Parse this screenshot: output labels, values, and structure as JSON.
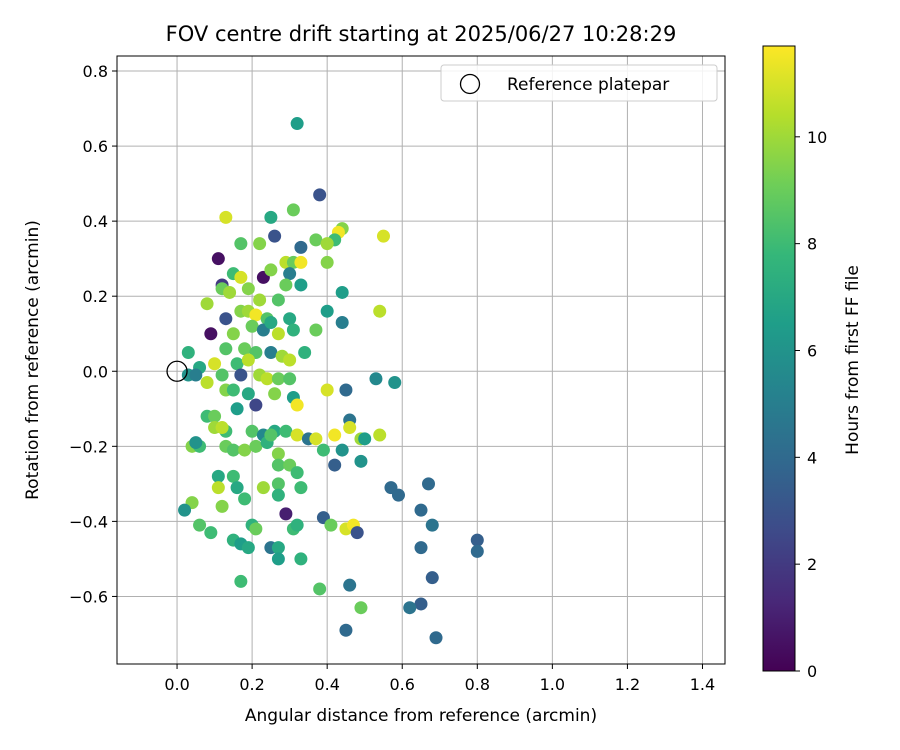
{
  "chart_data": {
    "type": "scatter",
    "title": "FOV centre drift starting at 2025/06/27 10:28:29",
    "xlabel": "Angular distance from reference (arcmin)",
    "ylabel": "Rotation from reference (arcmin)",
    "xlim": [
      -0.16,
      1.46
    ],
    "ylim": [
      -0.78,
      0.84
    ],
    "xticks": [
      0.0,
      0.2,
      0.4,
      0.6,
      0.8,
      1.0,
      1.2,
      1.4
    ],
    "xtick_labels": [
      "0.0",
      "0.2",
      "0.4",
      "0.6",
      "0.8",
      "1.0",
      "1.2",
      "1.4"
    ],
    "yticks": [
      -0.6,
      -0.4,
      -0.2,
      0.0,
      0.2,
      0.4,
      0.6,
      0.8
    ],
    "ytick_labels": [
      "−0.6",
      "−0.4",
      "−0.2",
      "0.0",
      "0.2",
      "0.4",
      "0.6",
      "0.8"
    ],
    "grid": true,
    "legend": {
      "placement": "top-right",
      "entries": [
        "Reference platepar"
      ]
    },
    "reference_point": {
      "x": 0.0,
      "y": 0.0,
      "label": "Reference platepar"
    },
    "colorbar": {
      "label": "Hours from first FF file",
      "colormap": "viridis",
      "range": [
        0,
        11.7
      ],
      "ticks": [
        0,
        2,
        4,
        6,
        8,
        10
      ],
      "tick_labels": [
        "0",
        "2",
        "4",
        "6",
        "8",
        "10"
      ]
    },
    "colormap_stops": [
      "#440154",
      "#482878",
      "#3e4a89",
      "#31688e",
      "#26828e",
      "#1f9e89",
      "#35b779",
      "#6ece58",
      "#b5de2b",
      "#fde725"
    ],
    "points": [
      [
        0.32,
        0.66,
        6.5
      ],
      [
        0.38,
        0.47,
        3.0
      ],
      [
        0.13,
        0.41,
        11.0
      ],
      [
        0.25,
        0.41,
        7.0
      ],
      [
        0.31,
        0.43,
        9.0
      ],
      [
        0.55,
        0.36,
        11.0
      ],
      [
        0.44,
        0.38,
        9.5
      ],
      [
        0.43,
        0.37,
        11.5
      ],
      [
        0.42,
        0.35,
        8.0
      ],
      [
        0.37,
        0.35,
        9.0
      ],
      [
        0.4,
        0.34,
        10.0
      ],
      [
        0.26,
        0.36,
        3.0
      ],
      [
        0.17,
        0.34,
        8.5
      ],
      [
        0.22,
        0.34,
        9.5
      ],
      [
        0.33,
        0.33,
        4.0
      ],
      [
        0.11,
        0.3,
        0.5
      ],
      [
        0.23,
        0.25,
        0.5
      ],
      [
        0.25,
        0.27,
        9.5
      ],
      [
        0.29,
        0.29,
        10.5
      ],
      [
        0.31,
        0.29,
        9.0
      ],
      [
        0.33,
        0.29,
        11.5
      ],
      [
        0.4,
        0.29,
        9.5
      ],
      [
        0.15,
        0.26,
        8.0
      ],
      [
        0.17,
        0.25,
        11.0
      ],
      [
        0.3,
        0.26,
        5.0
      ],
      [
        0.33,
        0.23,
        6.5
      ],
      [
        0.12,
        0.23,
        2.0
      ],
      [
        0.12,
        0.22,
        9.0
      ],
      [
        0.14,
        0.21,
        10.0
      ],
      [
        0.19,
        0.22,
        9.5
      ],
      [
        0.29,
        0.23,
        9.0
      ],
      [
        0.44,
        0.21,
        6.5
      ],
      [
        0.08,
        0.18,
        10.0
      ],
      [
        0.22,
        0.19,
        10.0
      ],
      [
        0.27,
        0.19,
        8.5
      ],
      [
        0.4,
        0.16,
        6.5
      ],
      [
        0.54,
        0.16,
        10.5
      ],
      [
        0.44,
        0.13,
        5.0
      ],
      [
        0.13,
        0.14,
        3.0
      ],
      [
        0.17,
        0.16,
        9.5
      ],
      [
        0.19,
        0.16,
        10.0
      ],
      [
        0.21,
        0.15,
        11.5
      ],
      [
        0.24,
        0.14,
        8.5
      ],
      [
        0.3,
        0.14,
        7.0
      ],
      [
        0.09,
        0.1,
        0.5
      ],
      [
        0.15,
        0.1,
        9.5
      ],
      [
        0.2,
        0.12,
        9.0
      ],
      [
        0.23,
        0.11,
        5.0
      ],
      [
        0.25,
        0.13,
        7.0
      ],
      [
        0.27,
        0.1,
        10.5
      ],
      [
        0.31,
        0.11,
        7.5
      ],
      [
        0.37,
        0.11,
        9.0
      ],
      [
        0.03,
        0.05,
        7.5
      ],
      [
        0.13,
        0.06,
        8.5
      ],
      [
        0.18,
        0.06,
        9.0
      ],
      [
        0.21,
        0.05,
        8.5
      ],
      [
        0.25,
        0.05,
        5.0
      ],
      [
        0.28,
        0.04,
        10.0
      ],
      [
        0.3,
        0.03,
        10.5
      ],
      [
        0.34,
        0.05,
        7.5
      ],
      [
        0.06,
        0.01,
        7.0
      ],
      [
        0.1,
        0.02,
        11.0
      ],
      [
        0.16,
        0.02,
        8.0
      ],
      [
        0.19,
        0.03,
        10.5
      ],
      [
        0.03,
        -0.01,
        6.0
      ],
      [
        0.05,
        -0.01,
        5.0
      ],
      [
        0.08,
        -0.03,
        10.5
      ],
      [
        0.12,
        -0.01,
        8.5
      ],
      [
        0.17,
        -0.01,
        3.0
      ],
      [
        0.22,
        -0.01,
        10.0
      ],
      [
        0.24,
        -0.02,
        10.5
      ],
      [
        0.27,
        -0.02,
        9.0
      ],
      [
        0.3,
        -0.02,
        8.5
      ],
      [
        0.26,
        -0.06,
        9.5
      ],
      [
        0.31,
        -0.07,
        6.5
      ],
      [
        0.4,
        -0.05,
        11.0
      ],
      [
        0.45,
        -0.05,
        4.0
      ],
      [
        0.53,
        -0.02,
        5.5
      ],
      [
        0.58,
        -0.03,
        6.0
      ],
      [
        0.13,
        -0.05,
        9.5
      ],
      [
        0.15,
        -0.05,
        8.0
      ],
      [
        0.19,
        -0.06,
        7.0
      ],
      [
        0.21,
        -0.09,
        2.5
      ],
      [
        0.32,
        -0.09,
        11.5
      ],
      [
        0.08,
        -0.12,
        8.0
      ],
      [
        0.1,
        -0.12,
        9.0
      ],
      [
        0.16,
        -0.1,
        6.5
      ],
      [
        0.1,
        -0.15,
        10.0
      ],
      [
        0.13,
        -0.16,
        8.0
      ],
      [
        0.12,
        -0.15,
        10.5
      ],
      [
        0.2,
        -0.16,
        8.5
      ],
      [
        0.23,
        -0.17,
        5.5
      ],
      [
        0.26,
        -0.16,
        7.0
      ],
      [
        0.29,
        -0.16,
        8.0
      ],
      [
        0.32,
        -0.17,
        11.0
      ],
      [
        0.35,
        -0.18,
        4.5
      ],
      [
        0.37,
        -0.18,
        11.0
      ],
      [
        0.39,
        -0.21,
        8.0
      ],
      [
        0.42,
        -0.17,
        11.5
      ],
      [
        0.44,
        -0.21,
        6.0
      ],
      [
        0.46,
        -0.13,
        4.5
      ],
      [
        0.46,
        -0.15,
        11.0
      ],
      [
        0.49,
        -0.18,
        10.0
      ],
      [
        0.5,
        -0.18,
        6.5
      ],
      [
        0.54,
        -0.17,
        10.5
      ],
      [
        0.04,
        -0.2,
        9.5
      ],
      [
        0.06,
        -0.2,
        8.0
      ],
      [
        0.05,
        -0.19,
        6.0
      ],
      [
        0.13,
        -0.2,
        9.0
      ],
      [
        0.15,
        -0.21,
        8.5
      ],
      [
        0.18,
        -0.21,
        9.5
      ],
      [
        0.21,
        -0.2,
        9.0
      ],
      [
        0.24,
        -0.19,
        7.5
      ],
      [
        0.25,
        -0.17,
        8.5
      ],
      [
        0.27,
        -0.22,
        9.5
      ],
      [
        0.27,
        -0.25,
        8.5
      ],
      [
        0.3,
        -0.25,
        9.0
      ],
      [
        0.32,
        -0.27,
        8.0
      ],
      [
        0.42,
        -0.25,
        3.5
      ],
      [
        0.49,
        -0.24,
        6.0
      ],
      [
        0.11,
        -0.28,
        7.0
      ],
      [
        0.15,
        -0.28,
        8.0
      ],
      [
        0.11,
        -0.31,
        10.5
      ],
      [
        0.16,
        -0.31,
        7.0
      ],
      [
        0.23,
        -0.31,
        10.0
      ],
      [
        0.27,
        -0.3,
        8.5
      ],
      [
        0.27,
        -0.33,
        7.5
      ],
      [
        0.33,
        -0.31,
        8.0
      ],
      [
        0.04,
        -0.35,
        9.5
      ],
      [
        0.12,
        -0.36,
        9.5
      ],
      [
        0.18,
        -0.34,
        8.0
      ],
      [
        0.02,
        -0.37,
        6.0
      ],
      [
        0.06,
        -0.41,
        8.5
      ],
      [
        0.09,
        -0.43,
        8.0
      ],
      [
        0.2,
        -0.41,
        7.5
      ],
      [
        0.21,
        -0.42,
        9.0
      ],
      [
        0.29,
        -0.38,
        1.0
      ],
      [
        0.31,
        -0.42,
        8.0
      ],
      [
        0.32,
        -0.41,
        7.5
      ],
      [
        0.39,
        -0.39,
        3.5
      ],
      [
        0.41,
        -0.41,
        9.0
      ],
      [
        0.45,
        -0.42,
        11.0
      ],
      [
        0.47,
        -0.41,
        11.5
      ],
      [
        0.48,
        -0.43,
        3.0
      ],
      [
        0.15,
        -0.45,
        7.5
      ],
      [
        0.17,
        -0.46,
        6.5
      ],
      [
        0.19,
        -0.47,
        7.0
      ],
      [
        0.25,
        -0.47,
        4.5
      ],
      [
        0.27,
        -0.47,
        7.0
      ],
      [
        0.27,
        -0.5,
        6.5
      ],
      [
        0.33,
        -0.5,
        7.5
      ],
      [
        0.17,
        -0.56,
        8.0
      ],
      [
        0.38,
        -0.58,
        8.5
      ],
      [
        0.46,
        -0.57,
        4.5
      ],
      [
        0.49,
        -0.63,
        9.0
      ],
      [
        0.45,
        -0.69,
        4.0
      ],
      [
        0.57,
        -0.31,
        4.0
      ],
      [
        0.59,
        -0.33,
        4.0
      ],
      [
        0.65,
        -0.37,
        4.0
      ],
      [
        0.67,
        -0.3,
        4.0
      ],
      [
        0.68,
        -0.41,
        4.5
      ],
      [
        0.65,
        -0.47,
        4.0
      ],
      [
        0.68,
        -0.55,
        3.5
      ],
      [
        0.65,
        -0.62,
        3.5
      ],
      [
        0.62,
        -0.63,
        4.5
      ],
      [
        0.69,
        -0.71,
        4.0
      ],
      [
        0.8,
        -0.45,
        3.5
      ],
      [
        0.8,
        -0.48,
        4.0
      ]
    ]
  }
}
